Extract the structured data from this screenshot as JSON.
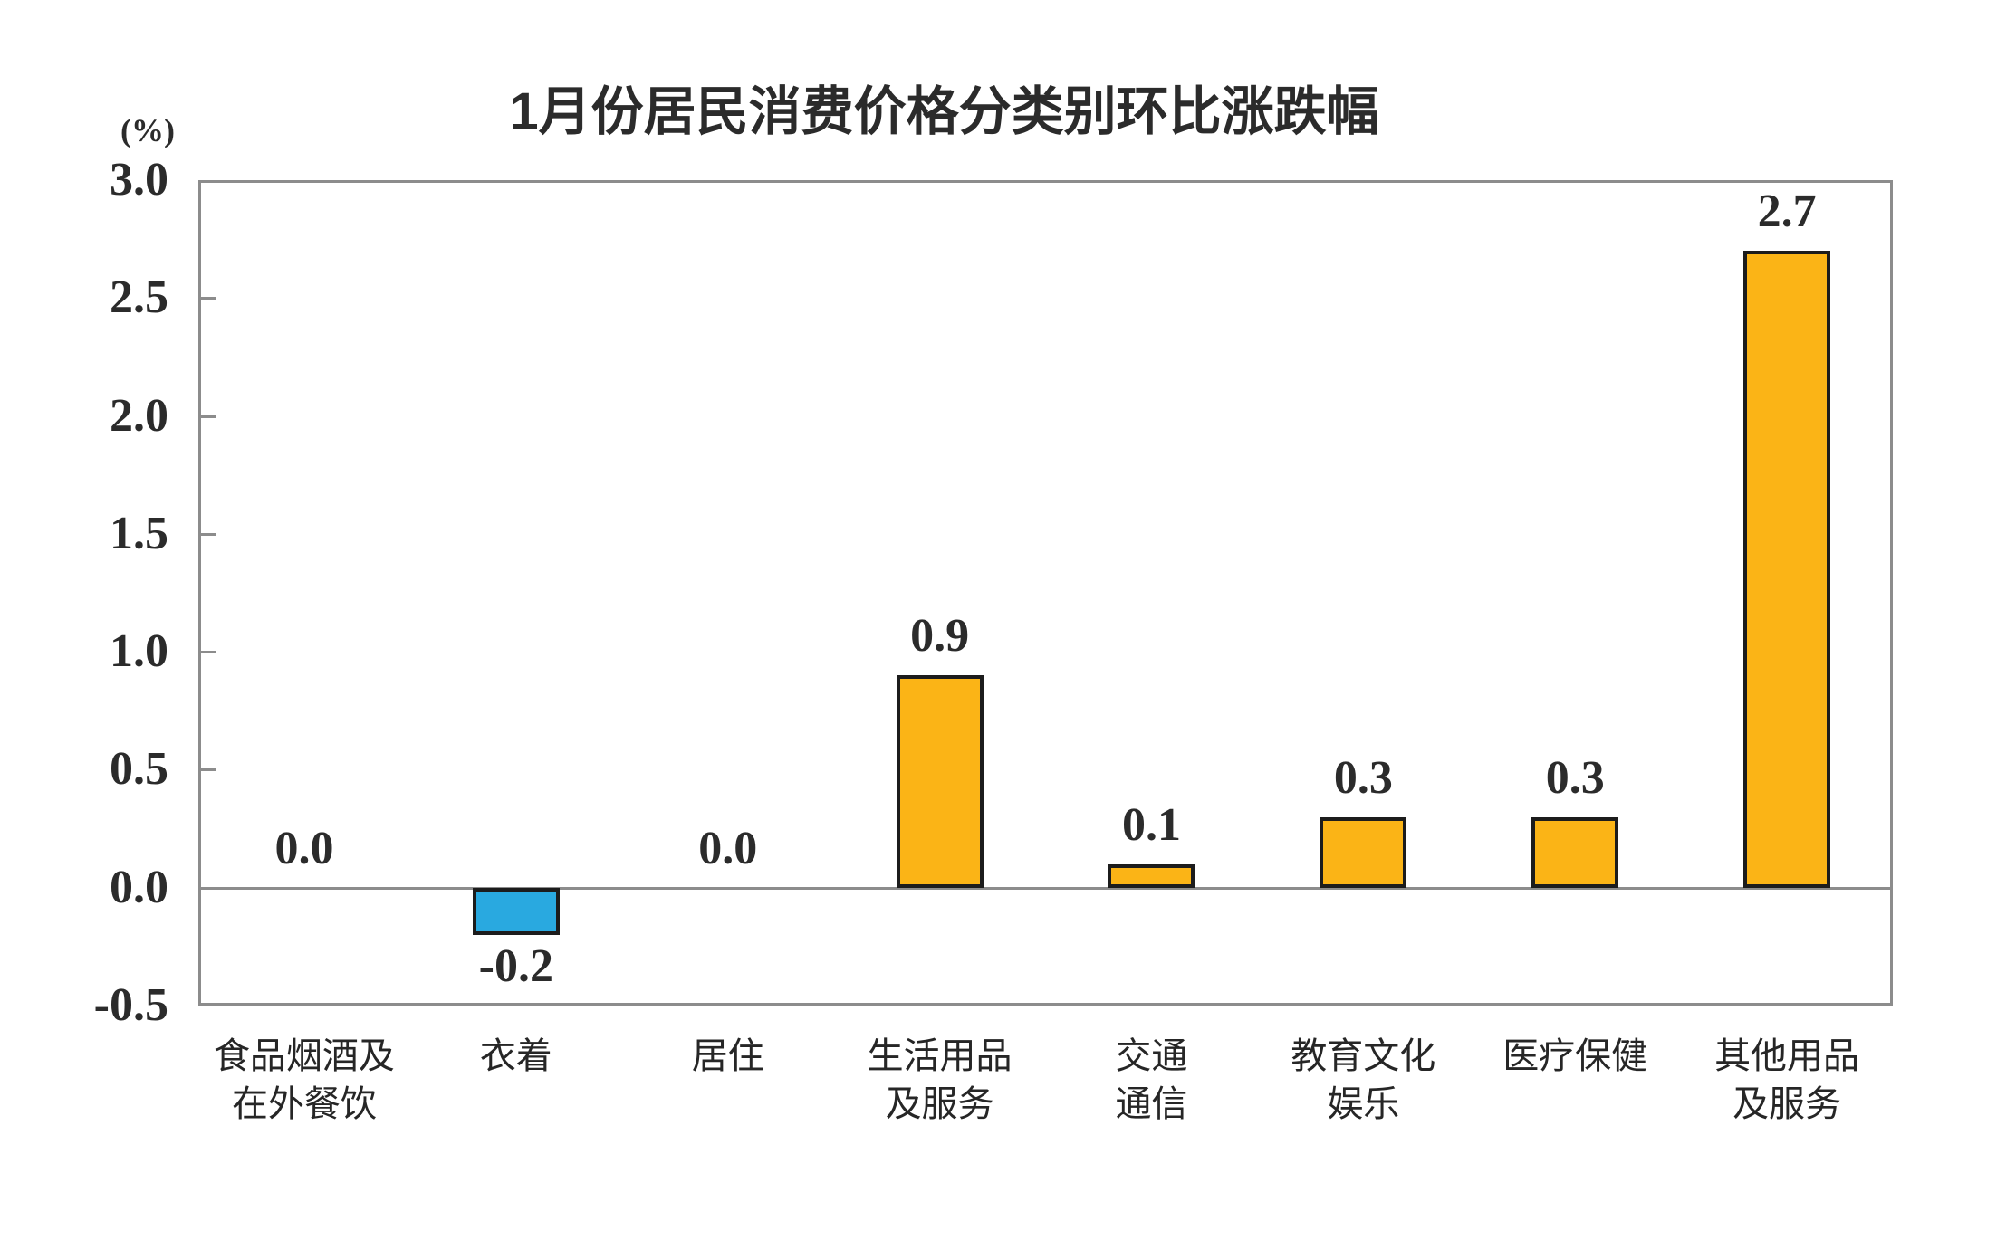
{
  "chart_data": {
    "type": "bar",
    "title": "1月份居民消费价格分类别环比涨跌幅",
    "unit_label": "(%)",
    "categories": [
      [
        "食品烟酒及",
        "在外餐饮"
      ],
      [
        "衣着"
      ],
      [
        "居住"
      ],
      [
        "生活用品",
        "及服务"
      ],
      [
        "交通",
        "通信"
      ],
      [
        "教育文化",
        "娱乐"
      ],
      [
        "医疗保健"
      ],
      [
        "其他用品",
        "及服务"
      ]
    ],
    "values": [
      0.0,
      -0.2,
      0.0,
      0.9,
      0.1,
      0.3,
      0.3,
      2.7
    ],
    "value_labels": [
      "0.0",
      "-0.2",
      "0.0",
      "0.9",
      "0.1",
      "0.3",
      "0.3",
      "2.7"
    ],
    "y_tick_labels": [
      "3.0",
      "2.5",
      "2.0",
      "1.5",
      "1.0",
      "0.5",
      "0.0",
      "-0.5"
    ],
    "ylim": [
      -0.5,
      3.0
    ],
    "grid": false,
    "legend": null,
    "xlabel": "",
    "ylabel": "",
    "colors": {
      "bar_positive": "#FBB416",
      "bar_negative": "#29A9E0",
      "bar_border": "#1C1C1C",
      "axis": "#8C8C8C",
      "text": "#2B2B2B"
    }
  }
}
